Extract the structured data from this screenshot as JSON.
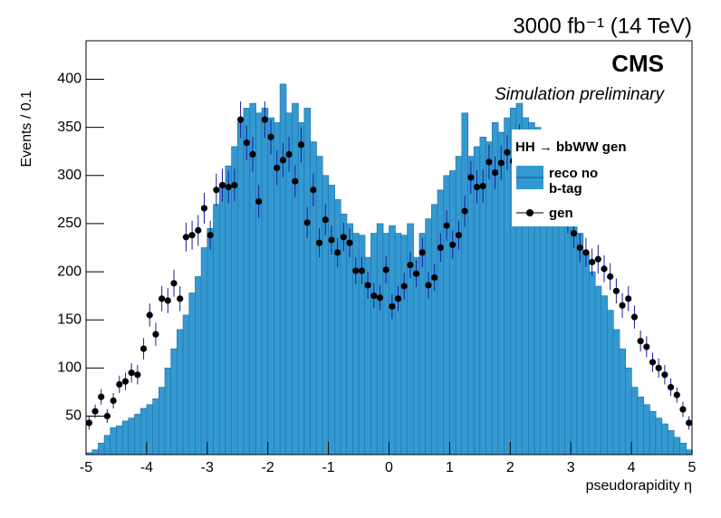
{
  "chart_data": {
    "type": "histogram",
    "title": "3000 fb⁻¹ (14 TeV)",
    "annotations": [
      "CMS",
      "Simulation preliminary"
    ],
    "legend_title": "HH → bbWW gen",
    "x_label": "pseudorapidity η",
    "y_label": "Events / 0.1",
    "xlim": [
      -5,
      5
    ],
    "ylim": [
      10,
      440
    ],
    "xticks": [
      -5,
      -4,
      -3,
      -2,
      -1,
      0,
      1,
      2,
      3,
      4,
      5
    ],
    "yticks": [
      50,
      100,
      150,
      200,
      250,
      300,
      350,
      400
    ],
    "bins": [
      -5,
      -4.9,
      -4.8,
      -4.7,
      -4.6,
      -4.5,
      -4.4,
      -4.3,
      -4.2,
      -4.1,
      -4,
      -3.9,
      -3.8,
      -3.7,
      -3.6,
      -3.5,
      -3.4,
      -3.3,
      -3.2,
      -3.1,
      -3,
      -2.9,
      -2.8,
      -2.7,
      -2.6,
      -2.5,
      -2.4,
      -2.3,
      -2.2,
      -2.1,
      -2,
      -1.9,
      -1.8,
      -1.7,
      -1.6,
      -1.5,
      -1.4,
      -1.3,
      -1.2,
      -1.1,
      -1,
      -0.9,
      -0.8,
      -0.7,
      -0.6,
      -0.5,
      -0.4,
      -0.3,
      -0.2,
      -0.1,
      0,
      0.1,
      0.2,
      0.3,
      0.4,
      0.5,
      0.6,
      0.7,
      0.8,
      0.9,
      1,
      1.1,
      1.2,
      1.3,
      1.4,
      1.5,
      1.6,
      1.7,
      1.8,
      1.9,
      2,
      2.1,
      2.2,
      2.3,
      2.4,
      2.5,
      2.6,
      2.7,
      2.8,
      2.9,
      3,
      3.1,
      3.2,
      3.3,
      3.4,
      3.5,
      3.6,
      3.7,
      3.8,
      3.9,
      4,
      4.1,
      4.2,
      4.3,
      4.4,
      4.5,
      4.6,
      4.7,
      4.8,
      4.9,
      5
    ],
    "series": [
      {
        "name": "reco no b-tag",
        "color": "#3399d0",
        "edge_color": "#1f6fa3",
        "values": [
          12,
          15,
          22,
          30,
          38,
          40,
          45,
          48,
          52,
          58,
          62,
          68,
          80,
          100,
          120,
          140,
          155,
          178,
          195,
          225,
          245,
          270,
          290,
          310,
          330,
          355,
          370,
          375,
          365,
          370,
          360,
          355,
          395,
          365,
          375,
          355,
          370,
          335,
          320,
          300,
          290,
          275,
          260,
          250,
          240,
          238,
          215,
          240,
          250,
          240,
          248,
          240,
          238,
          250,
          215,
          240,
          255,
          270,
          285,
          300,
          305,
          320,
          365,
          320,
          330,
          340,
          335,
          355,
          345,
          360,
          370,
          375,
          360,
          355,
          350,
          345,
          340,
          330,
          315,
          300,
          270,
          240,
          220,
          200,
          185,
          175,
          160,
          140,
          120,
          100,
          80,
          70,
          62,
          55,
          48,
          42,
          35,
          28,
          22,
          15
        ]
      },
      {
        "name": "gen",
        "color": "#000000",
        "error_color": "#1a1aa8",
        "values": [
          43,
          55,
          70,
          50,
          66,
          83,
          86,
          95,
          93,
          120,
          155,
          135,
          172,
          170,
          188,
          172,
          236,
          238,
          243,
          266,
          238,
          285,
          290,
          288,
          290,
          358,
          334,
          322,
          273,
          358,
          340,
          308,
          316,
          322,
          294,
          332,
          251,
          285,
          230,
          254,
          233,
          220,
          236,
          230,
          201,
          201,
          186,
          175,
          173,
          202,
          164,
          172,
          185,
          207,
          198,
          220,
          186,
          194,
          225,
          248,
          228,
          238,
          263,
          298,
          288,
          289,
          314,
          303,
          313,
          324,
          315,
          335,
          320,
          310,
          300,
          300,
          290,
          280,
          270,
          256,
          240,
          225,
          220,
          210,
          213,
          203,
          195,
          180,
          165,
          172,
          153,
          128,
          122,
          106,
          100,
          93,
          80,
          72,
          57,
          43
        ],
        "errors": [
          7,
          7,
          8,
          7,
          8,
          9,
          9,
          10,
          10,
          11,
          12,
          12,
          13,
          13,
          14,
          13,
          15,
          15,
          16,
          16,
          15,
          17,
          17,
          17,
          17,
          19,
          18,
          18,
          17,
          19,
          18,
          18,
          18,
          18,
          17,
          18,
          16,
          17,
          15,
          16,
          15,
          15,
          15,
          15,
          14,
          14,
          14,
          13,
          13,
          14,
          13,
          13,
          14,
          14,
          14,
          15,
          14,
          14,
          15,
          16,
          15,
          15,
          16,
          17,
          17,
          17,
          18,
          17,
          18,
          18,
          18,
          18,
          18,
          18,
          17,
          17,
          17,
          17,
          16,
          16,
          15,
          15,
          15,
          14,
          15,
          14,
          14,
          13,
          13,
          13,
          12,
          11,
          11,
          10,
          10,
          10,
          9,
          8,
          8,
          7
        ]
      }
    ]
  }
}
